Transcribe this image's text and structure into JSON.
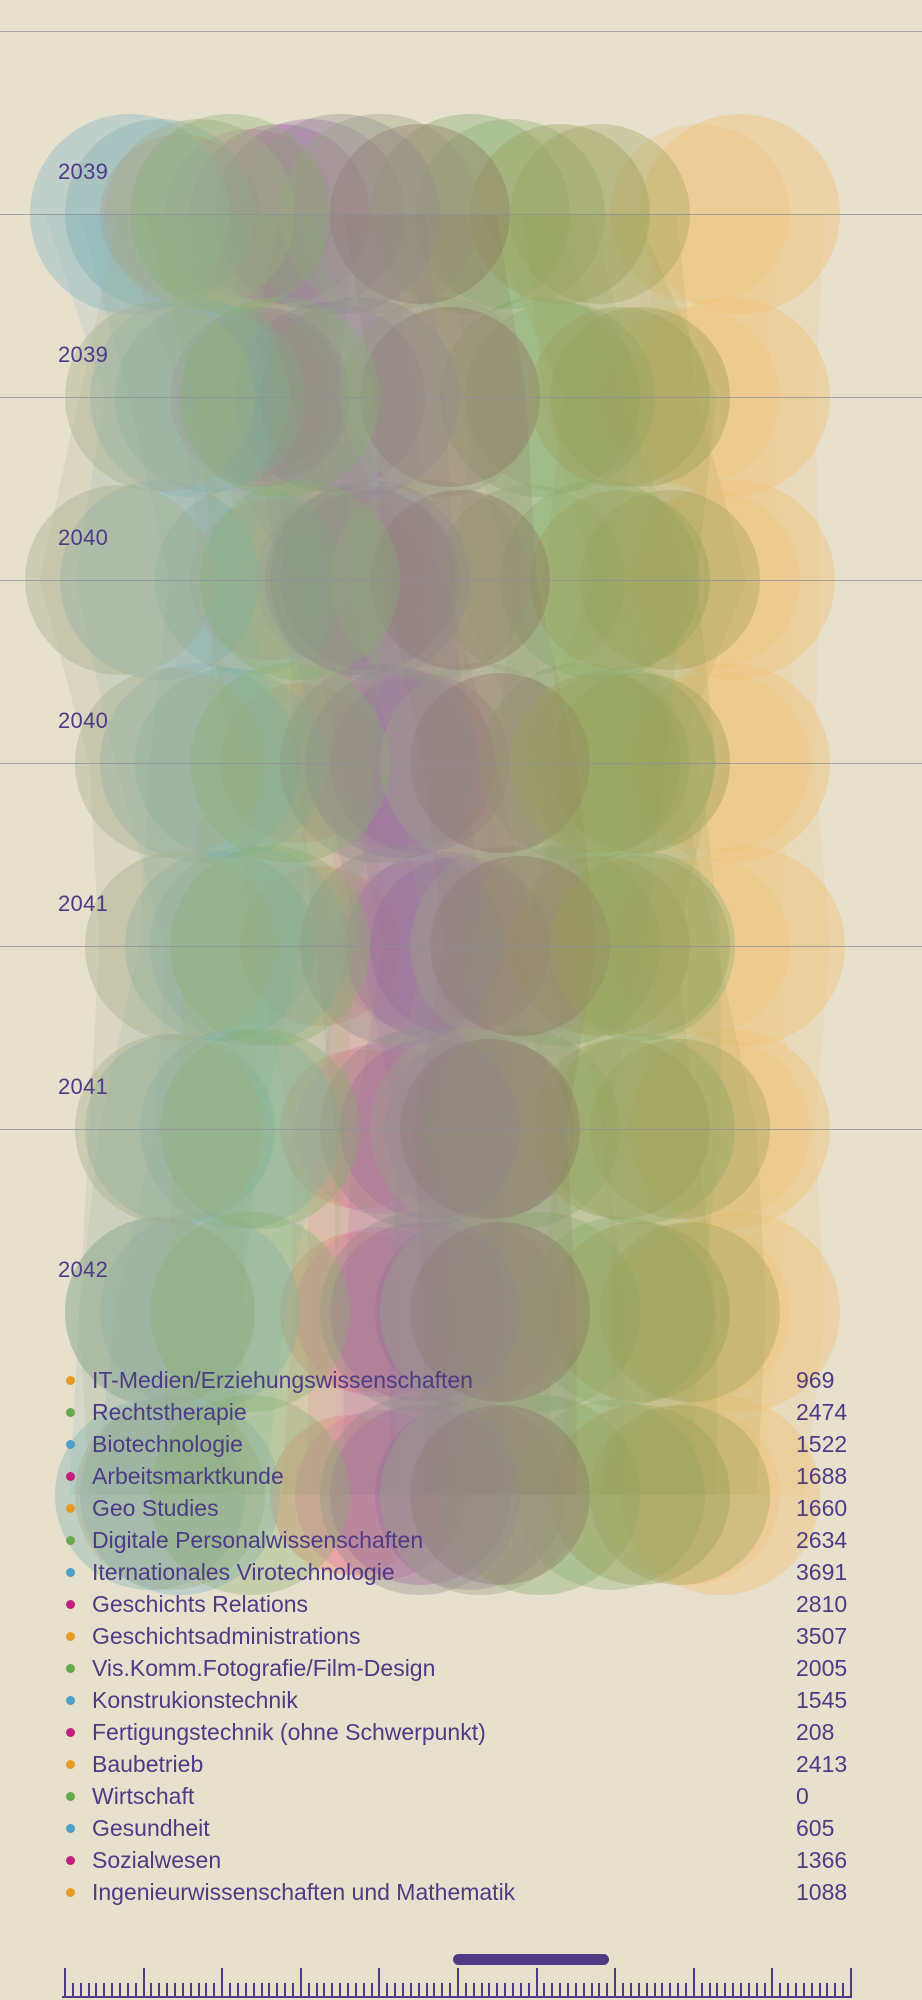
{
  "colors": {
    "orange": "#e69b25",
    "green": "#6aa84f",
    "blue": "#4f9fc6",
    "magenta": "#c51f7c",
    "text": "#4d3b86",
    "background": "#e7e0cd"
  },
  "timeline": {
    "rows": [
      {
        "label": "2039"
      },
      {
        "label": "2039"
      },
      {
        "label": "2040"
      },
      {
        "label": "2040"
      },
      {
        "label": "2041"
      },
      {
        "label": "2041"
      },
      {
        "label": "2042"
      }
    ]
  },
  "legend": {
    "items": [
      {
        "name": "IT-Medien/Erziehungswissenschaften",
        "value": "969",
        "color": "#e69b25"
      },
      {
        "name": "Rechtstherapie",
        "value": "2474",
        "color": "#6aa84f"
      },
      {
        "name": "Biotechnologie",
        "value": "1522",
        "color": "#4f9fc6"
      },
      {
        "name": "Arbeitsmarktkunde",
        "value": "1688",
        "color": "#c51f7c"
      },
      {
        "name": "Geo Studies",
        "value": "1660",
        "color": "#e69b25"
      },
      {
        "name": "Digitale Personalwissenschaften",
        "value": "2634",
        "color": "#6aa84f"
      },
      {
        "name": "Iternationales Virotechnologie",
        "value": "3691",
        "color": "#4f9fc6"
      },
      {
        "name": "Geschichts Relations",
        "value": "2810",
        "color": "#c51f7c"
      },
      {
        "name": "Geschichtsadministrations",
        "value": "3507",
        "color": "#e69b25"
      },
      {
        "name": "Vis.Komm.Fotografie/Film-Design",
        "value": "2005",
        "color": "#6aa84f"
      },
      {
        "name": "Konstrukionstechnik",
        "value": "1545",
        "color": "#4f9fc6"
      },
      {
        "name": "Fertigungstechnik (ohne Schwerpunkt)",
        "value": "208",
        "color": "#c51f7c"
      },
      {
        "name": "Baubetrieb",
        "value": "2413",
        "color": "#e69b25"
      },
      {
        "name": "Wirtschaft",
        "value": "0",
        "color": "#6aa84f"
      },
      {
        "name": "Gesundheit",
        "value": "605",
        "color": "#4f9fc6"
      },
      {
        "name": "Sozialwesen",
        "value": "1366",
        "color": "#c51f7c"
      },
      {
        "name": "Ingenieurwissenschaften und Mathematik",
        "value": "1088",
        "color": "#e69b25"
      }
    ]
  },
  "scrollbar": {
    "position": 0.5
  }
}
